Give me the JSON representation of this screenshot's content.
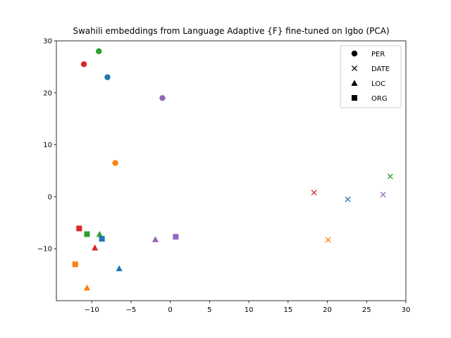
{
  "chart_data": {
    "type": "scatter",
    "title": "Swahili embeddings from Language Adaptive {F} fine-tuned on Igbo (PCA)",
    "xlabel": "",
    "ylabel": "",
    "xlim": [
      -14.5,
      30
    ],
    "ylim": [
      -20,
      30
    ],
    "xticks": [
      -10,
      -5,
      0,
      5,
      10,
      15,
      20,
      25,
      30
    ],
    "yticks": [
      -10,
      0,
      10,
      20,
      30
    ],
    "xtick_labels": [
      "−10",
      "−5",
      "0",
      "5",
      "10",
      "15",
      "20",
      "25",
      "30"
    ],
    "ytick_labels": [
      "−10",
      "0",
      "10",
      "20",
      "30"
    ],
    "grid": false,
    "legend_position": "top-right",
    "legend": [
      {
        "label": "PER",
        "marker": "circle"
      },
      {
        "label": "DATE",
        "marker": "x"
      },
      {
        "label": "LOC",
        "marker": "triangle"
      },
      {
        "label": "ORG",
        "marker": "square"
      }
    ],
    "colors": [
      "#1f77b4",
      "#ff7f0e",
      "#2ca02c",
      "#d62728",
      "#9467bd"
    ],
    "points": [
      {
        "x": -8.0,
        "y": 23.0,
        "marker": "circle",
        "color": 0
      },
      {
        "x": -7.0,
        "y": 6.5,
        "marker": "circle",
        "color": 1
      },
      {
        "x": -9.1,
        "y": 28.0,
        "marker": "circle",
        "color": 2
      },
      {
        "x": -11.0,
        "y": 25.5,
        "marker": "circle",
        "color": 3
      },
      {
        "x": -1.0,
        "y": 19.0,
        "marker": "circle",
        "color": 4
      },
      {
        "x": 22.6,
        "y": -0.5,
        "marker": "x",
        "color": 0
      },
      {
        "x": 20.1,
        "y": -8.3,
        "marker": "x",
        "color": 1
      },
      {
        "x": 28.0,
        "y": 3.9,
        "marker": "x",
        "color": 2
      },
      {
        "x": 18.3,
        "y": 0.8,
        "marker": "x",
        "color": 3
      },
      {
        "x": 27.1,
        "y": 0.4,
        "marker": "x",
        "color": 4
      },
      {
        "x": -6.5,
        "y": -13.8,
        "marker": "triangle",
        "color": 0
      },
      {
        "x": -10.6,
        "y": -17.5,
        "marker": "triangle",
        "color": 1
      },
      {
        "x": -9.0,
        "y": -7.2,
        "marker": "triangle",
        "color": 2
      },
      {
        "x": -9.6,
        "y": -9.8,
        "marker": "triangle",
        "color": 3
      },
      {
        "x": -1.9,
        "y": -8.2,
        "marker": "triangle",
        "color": 4
      },
      {
        "x": -8.7,
        "y": -8.1,
        "marker": "square",
        "color": 0
      },
      {
        "x": -12.1,
        "y": -13.0,
        "marker": "square",
        "color": 1
      },
      {
        "x": -10.6,
        "y": -7.2,
        "marker": "square",
        "color": 2
      },
      {
        "x": -11.6,
        "y": -6.1,
        "marker": "square",
        "color": 3
      },
      {
        "x": 0.7,
        "y": -7.7,
        "marker": "square",
        "color": 4
      }
    ]
  }
}
